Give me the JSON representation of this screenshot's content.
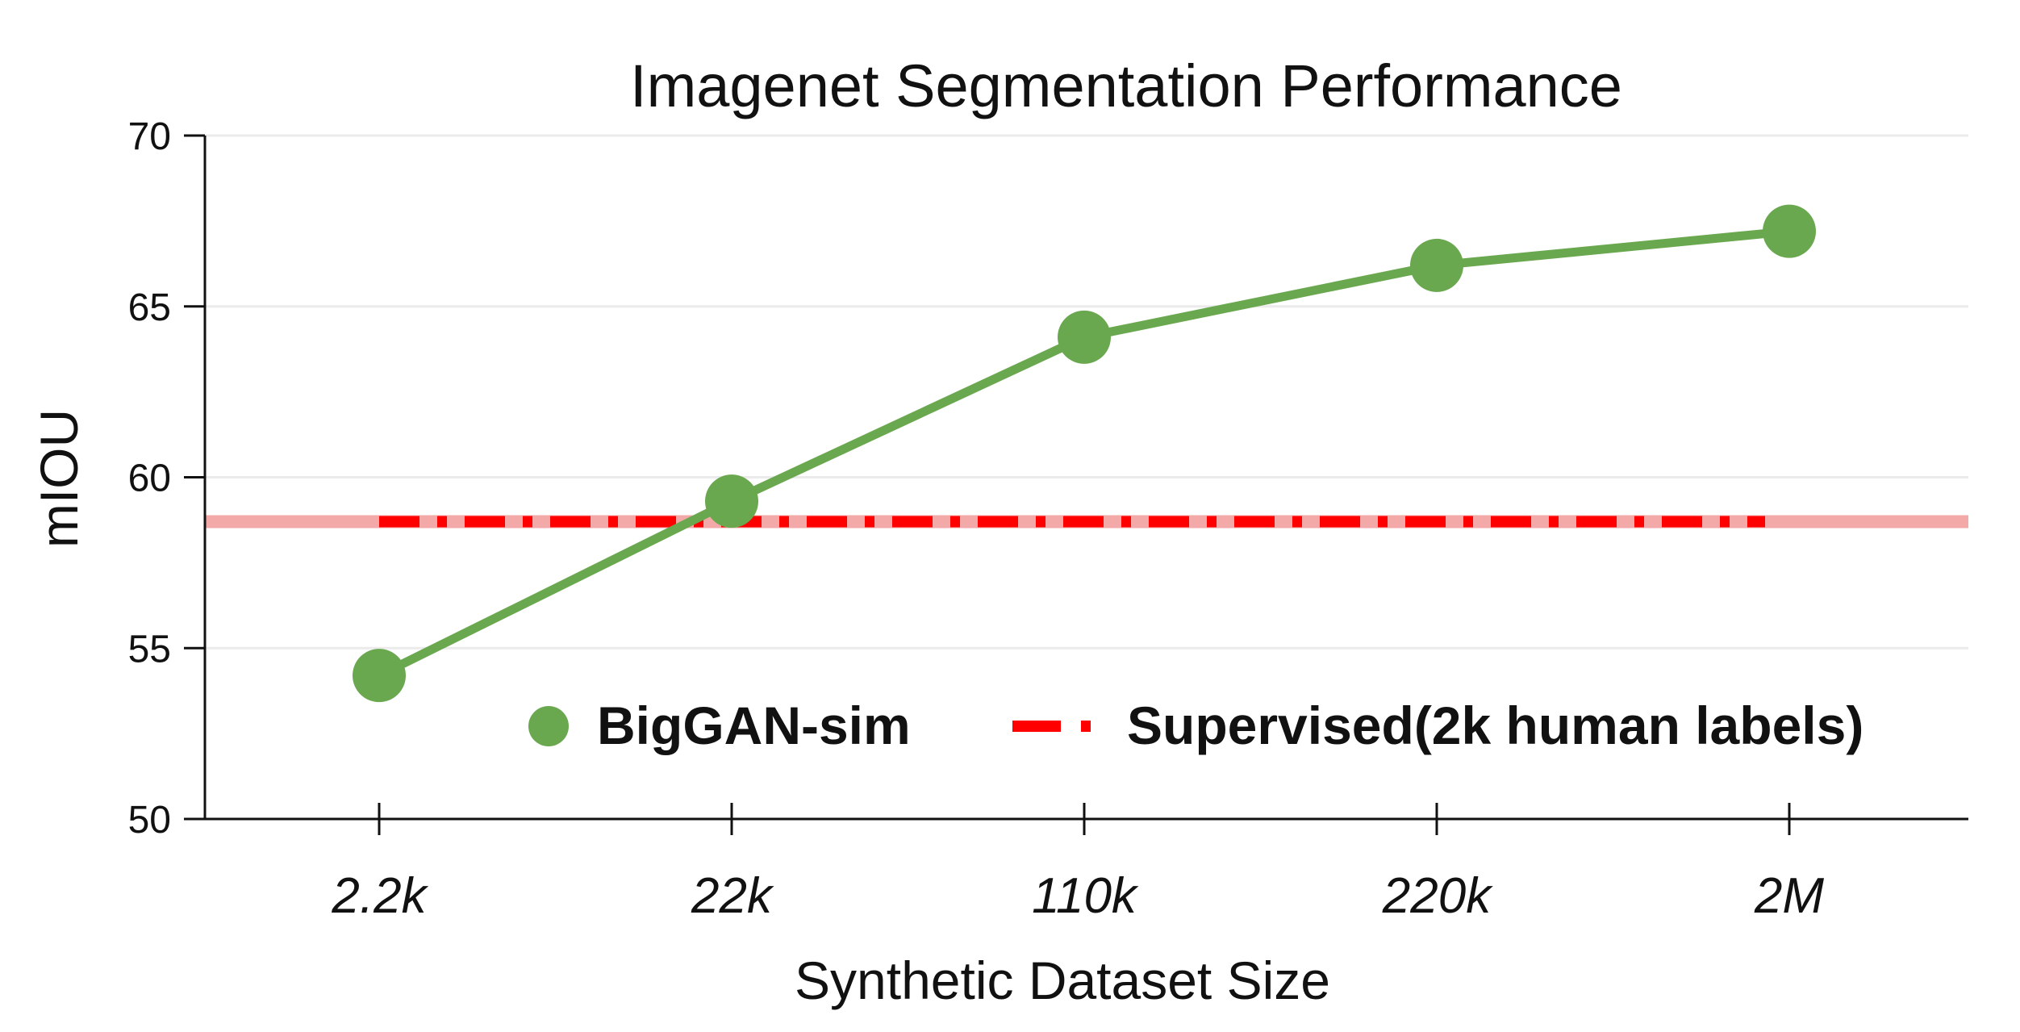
{
  "chart_data": {
    "type": "line",
    "title": "Imagenet Segmentation Performance",
    "xlabel": "Synthetic Dataset Size",
    "ylabel": "mIOU",
    "categories": [
      "2.2k",
      "22k",
      "110k",
      "220k",
      "2M"
    ],
    "yticks": [
      "50",
      "55",
      "60",
      "65",
      "70"
    ],
    "ylim": [
      50,
      70
    ],
    "grid": "horizontal",
    "legend_position": "lower-right",
    "series": [
      {
        "name": "BigGAN-sim",
        "values": [
          54.2,
          59.3,
          64.1,
          66.2,
          67.2
        ],
        "color": "#6aa84f",
        "style": "solid-with-markers"
      }
    ],
    "reference_lines": [
      {
        "name": "Supervised(2k human labels)",
        "value": 58.7,
        "color": "#ff0000",
        "band_color": "#f4a9a9",
        "style": "dash-dot"
      }
    ]
  }
}
